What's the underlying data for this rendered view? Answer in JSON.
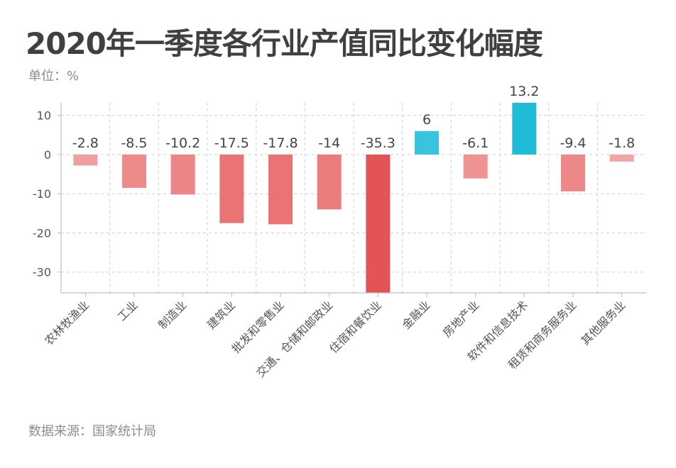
{
  "title": "2020年一季度各行业产值同比变化幅度",
  "unit_label": "单位：%",
  "source": "数据来源：国家统计局",
  "chart_data": {
    "type": "bar",
    "categories": [
      "农林牧渔业",
      "工业",
      "制造业",
      "建筑业",
      "批发和零售业",
      "交通、仓储和邮政业",
      "住宿和餐饮业",
      "金融业",
      "房地产业",
      "软件和信息技术",
      "租赁和商务服务业",
      "其他服务业"
    ],
    "values": [
      -2.8,
      -8.5,
      -10.2,
      -17.5,
      -17.8,
      -14,
      -35.3,
      6,
      -6.1,
      13.2,
      -9.4,
      -1.8
    ],
    "value_labels": [
      "-2.8",
      "-8.5",
      "-10.2",
      "-17.5",
      "-17.8",
      "-14",
      "-35.3",
      "6",
      "-6.1",
      "13.2",
      "-9.4",
      "-1.8"
    ],
    "yticks": [
      10,
      0,
      -10,
      -20,
      -30
    ],
    "ylim": [
      -35.3,
      13.2
    ],
    "grid": true,
    "colors": {
      "negative_light": "#f4b8b8",
      "negative_dark": "#e55454",
      "positive_light": "#4ecbe2",
      "positive_dark": "#1ebcd6",
      "axis": "#bdbdbd",
      "grid": "#d0d0d0",
      "text": "#555555",
      "label": "#444444"
    }
  }
}
